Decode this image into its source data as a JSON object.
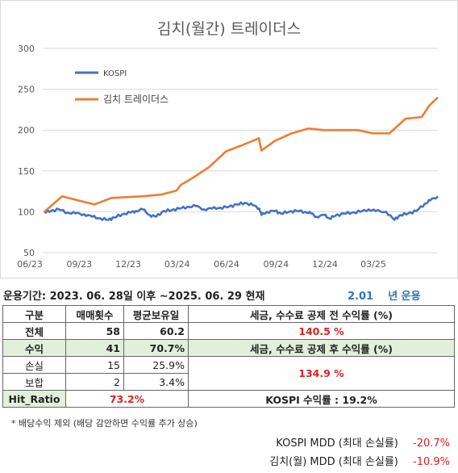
{
  "chart_data": {
    "type": "line",
    "title": "김치(월간) 트레이더스",
    "xlabel": "",
    "ylabel": "",
    "ylim": [
      50,
      300
    ],
    "yticks": [
      50,
      100,
      150,
      200,
      250,
      300
    ],
    "xlim": [
      "2023-06-28",
      "2025-06-29"
    ],
    "xticks": [
      "2023-06-01",
      "2023-09-01",
      "2023-12-01",
      "2024-03-01",
      "2024-06-01",
      "2024-09-01",
      "2024-12-01",
      "2025-03-01"
    ],
    "xticklabels": [
      "06/23",
      "09/23",
      "12/23",
      "03/24",
      "06/24",
      "09/24",
      "12/24",
      "03/25"
    ],
    "grid": "horizontal",
    "legend": "top-left",
    "series": [
      {
        "name": "KOSPI",
        "color": "#4472c4",
        "points": [
          [
            "2023-06-28",
            100
          ],
          [
            "2023-07-10",
            101
          ],
          [
            "2023-07-25",
            103
          ],
          [
            "2023-08-10",
            99
          ],
          [
            "2023-08-25",
            98
          ],
          [
            "2023-09-10",
            97
          ],
          [
            "2023-09-25",
            94
          ],
          [
            "2023-10-10",
            92
          ],
          [
            "2023-10-25",
            90
          ],
          [
            "2023-11-05",
            93
          ],
          [
            "2023-11-20",
            97
          ],
          [
            "2023-12-05",
            99
          ],
          [
            "2023-12-15",
            101
          ],
          [
            "2023-12-28",
            103
          ],
          [
            "2024-01-10",
            96
          ],
          [
            "2024-01-22",
            94
          ],
          [
            "2024-02-05",
            101
          ],
          [
            "2024-02-20",
            102
          ],
          [
            "2024-03-05",
            104
          ],
          [
            "2024-03-20",
            106
          ],
          [
            "2024-04-05",
            107
          ],
          [
            "2024-04-20",
            103
          ],
          [
            "2024-05-05",
            104
          ],
          [
            "2024-05-20",
            105
          ],
          [
            "2024-06-05",
            106
          ],
          [
            "2024-06-20",
            109
          ],
          [
            "2024-07-05",
            111
          ],
          [
            "2024-07-20",
            108
          ],
          [
            "2024-08-01",
            104
          ],
          [
            "2024-08-05",
            96
          ],
          [
            "2024-08-15",
            100
          ],
          [
            "2024-08-30",
            101
          ],
          [
            "2024-09-10",
            98
          ],
          [
            "2024-09-25",
            100
          ],
          [
            "2024-10-10",
            101
          ],
          [
            "2024-10-25",
            100
          ],
          [
            "2024-11-05",
            98
          ],
          [
            "2024-11-15",
            94
          ],
          [
            "2024-11-30",
            96
          ],
          [
            "2024-12-09",
            92
          ],
          [
            "2024-12-20",
            95
          ],
          [
            "2025-01-05",
            98
          ],
          [
            "2025-01-20",
            99
          ],
          [
            "2025-02-05",
            100
          ],
          [
            "2025-02-20",
            103
          ],
          [
            "2025-03-05",
            101
          ],
          [
            "2025-03-25",
            100
          ],
          [
            "2025-04-09",
            90
          ],
          [
            "2025-04-20",
            96
          ],
          [
            "2025-05-05",
            98
          ],
          [
            "2025-05-20",
            101
          ],
          [
            "2025-06-05",
            110
          ],
          [
            "2025-06-15",
            114
          ],
          [
            "2025-06-29",
            119
          ]
        ]
      },
      {
        "name": "김치 트레이더스",
        "color": "#ed7d31",
        "points": [
          [
            "2023-06-28",
            100
          ],
          [
            "2023-07-31",
            119
          ],
          [
            "2023-09-29",
            109
          ],
          [
            "2023-10-31",
            117
          ],
          [
            "2023-11-30",
            118
          ],
          [
            "2023-12-28",
            119
          ],
          [
            "2024-01-31",
            121
          ],
          [
            "2024-02-29",
            126
          ],
          [
            "2024-03-08",
            133
          ],
          [
            "2024-03-29",
            141
          ],
          [
            "2024-04-30",
            155
          ],
          [
            "2024-05-31",
            174
          ],
          [
            "2024-06-28",
            181
          ],
          [
            "2024-07-31",
            190
          ],
          [
            "2024-08-05",
            175
          ],
          [
            "2024-08-30",
            187
          ],
          [
            "2024-09-30",
            196
          ],
          [
            "2024-10-31",
            202
          ],
          [
            "2024-11-29",
            200
          ],
          [
            "2024-12-30",
            200
          ],
          [
            "2025-01-31",
            200
          ],
          [
            "2025-02-28",
            196
          ],
          [
            "2025-03-31",
            196
          ],
          [
            "2025-04-30",
            214
          ],
          [
            "2025-05-30",
            216
          ],
          [
            "2025-06-13",
            230
          ],
          [
            "2025-06-29",
            240
          ]
        ]
      }
    ]
  },
  "summary": {
    "period_label": "운용기간: 2023. 06. 28일 이후 ~2025. 06. 29 현재",
    "years_value": "2.01",
    "years_unit": "년 운용",
    "headers": [
      "구분",
      "매매횟수",
      "평균보유일",
      "세금, 수수료 공제 전 수익률 (%)"
    ],
    "total": {
      "label": "전체",
      "trades": "58",
      "avg_hold": "60.2",
      "gross_return": "140.5 %"
    },
    "profit": {
      "label": "수익",
      "trades": "41",
      "ratio": "70.7%",
      "net_label": "세금, 수수료 공제 후 수익률 (%)"
    },
    "loss": {
      "label": "손실",
      "trades": "15",
      "ratio": "25.9%"
    },
    "even": {
      "label": "보합",
      "trades": "2",
      "ratio": "3.4%"
    },
    "net_return": "134.9 %",
    "hit": {
      "label": "Hit_Ratio",
      "value": "73.2%",
      "kospi_label": "KOSPI 수익률 : 19.2%"
    },
    "note": "* 배당수익 제외 (배당 감안하면 수익률 추가 상승)",
    "mdd": [
      {
        "label": "KOSPI MDD (최대 손실률)",
        "value": "-20.7%"
      },
      {
        "label": "김치(월) MDD (최대 손실률)",
        "value": "-10.9%"
      }
    ]
  }
}
